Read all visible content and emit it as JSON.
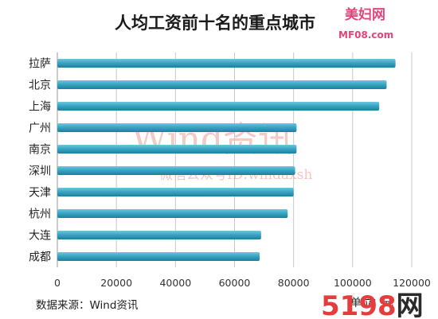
{
  "chart_data": {
    "type": "bar",
    "orientation": "horizontal",
    "title": "人均工资前十名的重点城市",
    "categories": [
      "拉萨",
      "北京",
      "上海",
      "广州",
      "南京",
      "深圳",
      "天津",
      "杭州",
      "大连",
      "成都"
    ],
    "values": [
      114500,
      111500,
      109000,
      81000,
      81000,
      80500,
      80000,
      78000,
      69000,
      68500
    ],
    "xlim": [
      0,
      120000
    ],
    "xticks": [
      "0",
      "20000",
      "40000",
      "60000",
      "80000",
      "100000",
      "120000"
    ],
    "grid": true,
    "bar_color": "#3aa6c4",
    "source": "数据来源：Wind资讯",
    "unit": "单位：元"
  },
  "watermark": {
    "main": "Wind资讯",
    "sub": "微信公众号ID:windaxsh"
  },
  "logos": {
    "top_brand": "美妇网",
    "top_url": "MF08.com",
    "bottom_digits": "5198",
    "bottom_char": "网",
    "bottom_digits_color": "#e53d3d",
    "bottom_char_color": "#2a2a2a"
  }
}
